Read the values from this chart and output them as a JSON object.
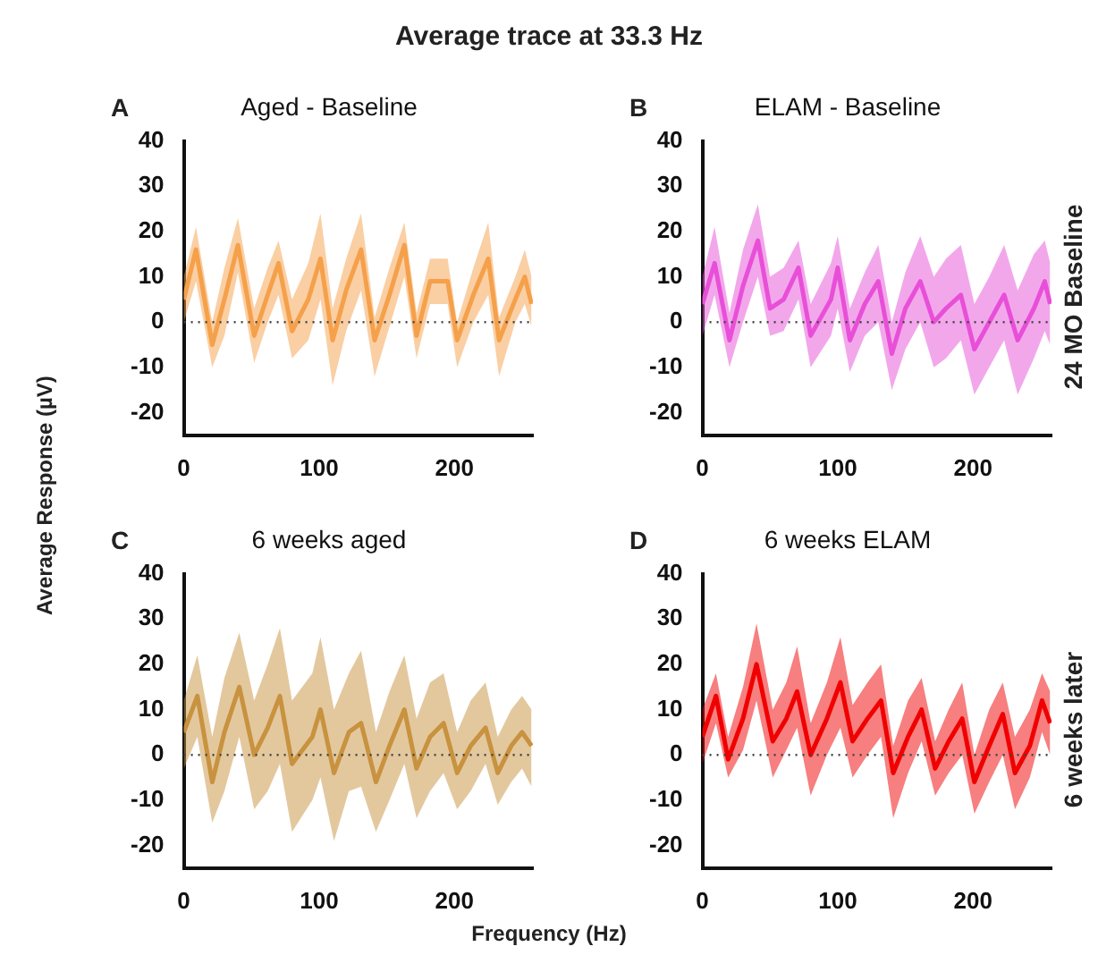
{
  "chart_data": [
    {
      "type": "line",
      "title": "Aged - Baseline",
      "ylabel": "Average Response (µV)",
      "annotations": [
        "A",
        "Average trace at 33.3 Hz"
      ],
      "xlim": [
        0,
        258
      ],
      "xticks": [
        0,
        100,
        200
      ],
      "ylim": [
        -25,
        40
      ],
      "yticks": [
        -20,
        -10,
        0,
        10,
        20,
        30,
        40
      ],
      "grid": false,
      "legend": false,
      "marker": "none",
      "ref_lines": [
        {
          "axis": "y",
          "value": 0,
          "line_style": "dotted",
          "color": "#444444"
        }
      ],
      "series": [
        {
          "color": "#f5a04a",
          "x": [
            0,
            9,
            21,
            30,
            40,
            52,
            62,
            70,
            80,
            92,
            101,
            110,
            120,
            131,
            141,
            152,
            163,
            172,
            182,
            195,
            202,
            214,
            225,
            233,
            245,
            252,
            257
          ],
          "values": [
            5,
            16,
            -5,
            5,
            17,
            -3,
            6,
            13,
            -2,
            5,
            14,
            -4,
            7,
            16,
            -4,
            6,
            17,
            -3,
            9,
            9,
            -4,
            6,
            14,
            -4,
            5,
            10,
            4
          ],
          "lower": [
            0,
            9,
            -10,
            -3,
            11,
            -9,
            0,
            6,
            -8,
            -4,
            5,
            -14,
            -2,
            7,
            -12,
            -1,
            10,
            -8,
            4,
            4,
            -10,
            0,
            6,
            -12,
            0,
            4,
            -1
          ],
          "upper": [
            10,
            21,
            0,
            12,
            23,
            3,
            12,
            18,
            5,
            13,
            24,
            3,
            14,
            24,
            1,
            12,
            22,
            2,
            14,
            14,
            0,
            12,
            22,
            1,
            10,
            16,
            10
          ]
        }
      ]
    },
    {
      "type": "line",
      "title": "ELAM - Baseline",
      "annotations": [
        "B",
        "24 MO Baseline"
      ],
      "xlim": [
        0,
        258
      ],
      "xticks": [
        0,
        100,
        200
      ],
      "ylim": [
        -25,
        40
      ],
      "yticks": [
        -20,
        -10,
        0,
        10,
        20,
        30,
        40
      ],
      "grid": false,
      "legend": false,
      "marker": "none",
      "ref_lines": [
        {
          "axis": "y",
          "value": 0,
          "line_style": "dotted",
          "color": "#444444"
        }
      ],
      "series": [
        {
          "color": "#e84fd8",
          "x": [
            0,
            9,
            20,
            30,
            41,
            50,
            60,
            71,
            80,
            95,
            100,
            109,
            120,
            130,
            140,
            150,
            161,
            171,
            180,
            191,
            201,
            212,
            223,
            233,
            245,
            253,
            257
          ],
          "values": [
            4,
            13,
            -4,
            8,
            18,
            3,
            5,
            12,
            -3,
            5,
            12,
            -4,
            4,
            9,
            -7,
            3,
            9,
            0,
            3,
            6,
            -6,
            0,
            6,
            -4,
            3,
            9,
            4
          ],
          "lower": [
            -3,
            6,
            -10,
            0,
            10,
            -3,
            -2,
            5,
            -10,
            -3,
            3,
            -11,
            -3,
            0,
            -15,
            -6,
            0,
            -10,
            -8,
            -4,
            -16,
            -10,
            -4,
            -16,
            -8,
            -2,
            -5
          ],
          "upper": [
            10,
            21,
            2,
            16,
            26,
            10,
            12,
            18,
            4,
            13,
            19,
            3,
            11,
            17,
            0,
            11,
            19,
            10,
            14,
            17,
            4,
            10,
            17,
            7,
            15,
            18,
            13
          ]
        }
      ]
    },
    {
      "type": "line",
      "title": "6 weeks aged",
      "xlabel": "Frequency (Hz)",
      "annotations": [
        "C"
      ],
      "xlim": [
        0,
        258
      ],
      "xticks": [
        0,
        100,
        200
      ],
      "ylim": [
        -25,
        40
      ],
      "yticks": [
        -20,
        -10,
        0,
        10,
        20,
        30,
        40
      ],
      "grid": false,
      "legend": false,
      "marker": "none",
      "ref_lines": [
        {
          "axis": "y",
          "value": 0,
          "line_style": "dotted",
          "color": "#444444"
        }
      ],
      "series": [
        {
          "color": "#c8923e",
          "x": [
            0,
            10,
            21,
            30,
            41,
            52,
            62,
            71,
            80,
            95,
            101,
            111,
            122,
            131,
            142,
            152,
            163,
            172,
            182,
            192,
            202,
            212,
            223,
            232,
            242,
            250,
            257
          ],
          "values": [
            5,
            13,
            -6,
            5,
            15,
            0,
            6,
            13,
            -2,
            4,
            10,
            -4,
            5,
            7,
            -6,
            2,
            10,
            -3,
            4,
            7,
            -4,
            2,
            6,
            -4,
            2,
            5,
            2
          ],
          "lower": [
            -3,
            4,
            -15,
            -8,
            4,
            -12,
            -8,
            -2,
            -17,
            -10,
            -5,
            -19,
            -8,
            -7,
            -17,
            -10,
            -2,
            -14,
            -8,
            -4,
            -12,
            -8,
            -2,
            -11,
            -6,
            -3,
            -7
          ],
          "upper": [
            12,
            22,
            4,
            17,
            27,
            12,
            20,
            28,
            12,
            18,
            26,
            10,
            18,
            23,
            5,
            14,
            22,
            8,
            16,
            18,
            5,
            12,
            16,
            4,
            10,
            13,
            10
          ]
        }
      ]
    },
    {
      "type": "line",
      "title": "6 weeks ELAM",
      "annotations": [
        "D",
        "6 weeks later"
      ],
      "xlim": [
        0,
        258
      ],
      "xticks": [
        0,
        100,
        200
      ],
      "ylim": [
        -25,
        40
      ],
      "yticks": [
        -20,
        -10,
        0,
        10,
        20,
        30,
        40
      ],
      "grid": false,
      "legend": false,
      "marker": "none",
      "ref_lines": [
        {
          "axis": "y",
          "value": 0,
          "line_style": "dotted",
          "color": "#444444"
        }
      ],
      "series": [
        {
          "color": "#f00000",
          "x": [
            0,
            10,
            19,
            30,
            40,
            52,
            62,
            70,
            80,
            92,
            102,
            111,
            122,
            132,
            141,
            152,
            162,
            172,
            182,
            192,
            201,
            212,
            222,
            231,
            242,
            251,
            257
          ],
          "values": [
            4,
            13,
            -1,
            8,
            20,
            3,
            8,
            14,
            0,
            8,
            16,
            3,
            8,
            12,
            -4,
            4,
            10,
            -3,
            3,
            8,
            -6,
            2,
            9,
            -4,
            2,
            12,
            7
          ],
          "lower": [
            -2,
            7,
            -5,
            1,
            12,
            -5,
            1,
            6,
            -9,
            0,
            6,
            -5,
            0,
            4,
            -14,
            -4,
            3,
            -9,
            -4,
            0,
            -13,
            -6,
            0,
            -12,
            -5,
            5,
            0
          ],
          "upper": [
            10,
            18,
            4,
            15,
            29,
            10,
            16,
            24,
            7,
            16,
            26,
            11,
            16,
            20,
            2,
            12,
            17,
            3,
            10,
            16,
            0,
            10,
            16,
            4,
            10,
            18,
            14
          ]
        }
      ]
    }
  ]
}
